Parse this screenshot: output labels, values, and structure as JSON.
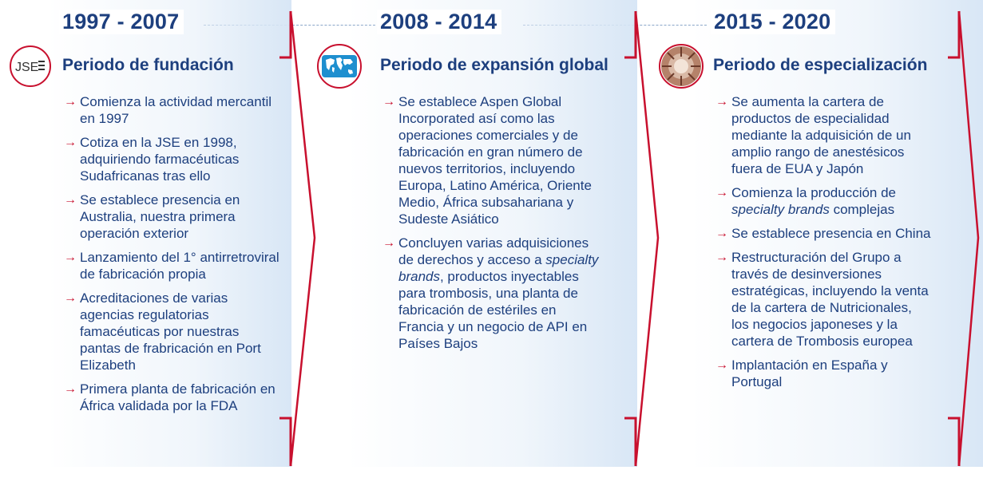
{
  "columns": [
    {
      "year": "1997 - 2007",
      "icon": "jse-logo-icon",
      "icon_text": "JSE",
      "title": "Periodo de fundación",
      "items": [
        {
          "parts": [
            {
              "t": "Comienza la actividad mercantil en 1997"
            }
          ]
        },
        {
          "parts": [
            {
              "t": "Cotiza en la JSE en 1998, adquiriendo farmacéuticas Sudafricanas tras ello"
            }
          ]
        },
        {
          "parts": [
            {
              "t": "Se establece presencia en Australia, nuestra primera operación exterior"
            }
          ]
        },
        {
          "parts": [
            {
              "t": "Lanzamiento del 1° antirretroviral de fabricación propia"
            }
          ]
        },
        {
          "parts": [
            {
              "t": "Acreditaciones de varias agencias regulatorias famacéuticas por nuestras pantas de frabricación en Port Elizabeth"
            }
          ]
        },
        {
          "parts": [
            {
              "t": "Primera planta de fabricación en África validada por la FDA"
            }
          ]
        }
      ]
    },
    {
      "year": "2008 - 2014",
      "icon": "world-map-icon",
      "title": "Periodo de expansión global",
      "items": [
        {
          "parts": [
            {
              "t": "Se establece Aspen Global Incorporated así como las operaciones comerciales y de fabricación en gran número de nuevos territorios, incluyendo Europa, Latino América, Oriente Medio, África subsahariana y Sudeste Asiático"
            }
          ]
        },
        {
          "parts": [
            {
              "t": "Concluyen varias adquisiciones de derechos y acceso a "
            },
            {
              "t": "specialty brands",
              "i": true
            },
            {
              "t": ", productos inyectables para trombosis, una planta de fabricación de estériles en Francia y un negocio de API en Países Bajos"
            }
          ]
        }
      ]
    },
    {
      "year": "2015 - 2020",
      "icon": "building-icon",
      "title": "Periodo de especialización",
      "items": [
        {
          "parts": [
            {
              "t": "Se aumenta la cartera de productos de especialidad mediante la adquisición de un amplio rango de anestésicos fuera de EUA y Japón"
            }
          ]
        },
        {
          "parts": [
            {
              "t": "Comienza la producción de "
            },
            {
              "t": "specialty brands",
              "i": true
            },
            {
              "t": " complejas"
            }
          ]
        },
        {
          "parts": [
            {
              "t": "Se establece presencia en China"
            }
          ]
        },
        {
          "parts": [
            {
              "t": "Restructuración del Grupo a través de desinversiones estratégicas, incluyendo la venta de la cartera de Nutricionales, los negocios japoneses y la cartera de Trombosis europea"
            }
          ]
        },
        {
          "parts": [
            {
              "t": "Implantación en España y Portugal"
            }
          ]
        }
      ]
    }
  ],
  "colors": {
    "navy": "#1d3f7e",
    "red": "#c8102e",
    "panel": "#dbe8f5"
  }
}
